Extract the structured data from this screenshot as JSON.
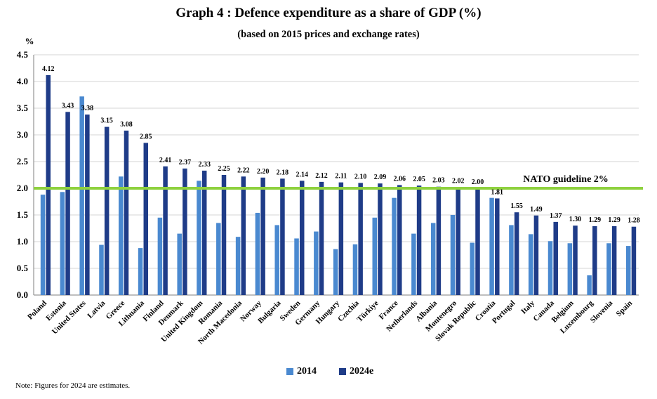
{
  "title": "Graph 4 : Defence expenditure as a share of GDP (%)",
  "subtitle": "(based on 2015 prices and exchange rates)",
  "note": "Note: Figures for 2024 are estimates.",
  "colors": {
    "s2014": "#4a89d0",
    "s2024": "#1f3c88",
    "guideline": "#8ed13e",
    "grid": "#d4d4d4"
  },
  "chart_data": {
    "type": "bar",
    "ylabel": "%",
    "ylim": [
      0,
      4.5
    ],
    "yticks": [
      "0.0",
      "0.5",
      "1.0",
      "1.5",
      "2.0",
      "2.5",
      "3.0",
      "3.5",
      "4.0",
      "4.5"
    ],
    "grid": true,
    "legend_position": "bottom",
    "categories": [
      "Poland",
      "Estonia",
      "United States",
      "Latvia",
      "Greece",
      "Lithuania",
      "Finland",
      "Denmark",
      "United Kingdom",
      "Romania",
      "North Macedonia",
      "Norway",
      "Bulgaria",
      "Sweden",
      "Germany",
      "Hungary",
      "Czechia",
      "Türkiye",
      "France",
      "Netherlands",
      "Albania",
      "Montenegro",
      "Slovak Republic",
      "Croatia",
      "Portugal",
      "Italy",
      "Canada",
      "Belgium",
      "Luxembourg",
      "Slovenia",
      "Spain"
    ],
    "series": [
      {
        "name": "2014",
        "values": [
          1.88,
          1.93,
          3.72,
          0.94,
          2.22,
          0.88,
          1.45,
          1.15,
          2.14,
          1.35,
          1.09,
          1.54,
          1.31,
          1.06,
          1.19,
          0.86,
          0.95,
          1.45,
          1.82,
          1.15,
          1.35,
          1.5,
          0.98,
          1.82,
          1.31,
          1.14,
          1.01,
          0.97,
          0.37,
          0.97,
          0.92
        ]
      },
      {
        "name": "2024e",
        "values": [
          4.12,
          3.43,
          3.38,
          3.15,
          3.08,
          2.85,
          2.41,
          2.37,
          2.33,
          2.25,
          2.22,
          2.2,
          2.18,
          2.14,
          2.12,
          2.11,
          2.1,
          2.09,
          2.06,
          2.05,
          2.03,
          2.02,
          2.0,
          1.81,
          1.55,
          1.49,
          1.37,
          1.3,
          1.29,
          1.29,
          1.28
        ]
      }
    ],
    "data_labels_2024e": [
      "4.12",
      "3.43",
      "3.38",
      "3.15",
      "3.08",
      "2.85",
      "2.41",
      "2.37",
      "2.33",
      "2.25",
      "2.22",
      "2.20",
      "2.18",
      "2.14",
      "2.12",
      "2.11",
      "2.10",
      "2.09",
      "2.06",
      "2.05",
      "2.03",
      "2.02",
      "2.00",
      "1.81",
      "1.55",
      "1.49",
      "1.37",
      "1.30",
      "1.29",
      "1.29",
      "1.28"
    ],
    "guideline": {
      "value": 2.0,
      "label": "NATO guideline 2%"
    }
  }
}
